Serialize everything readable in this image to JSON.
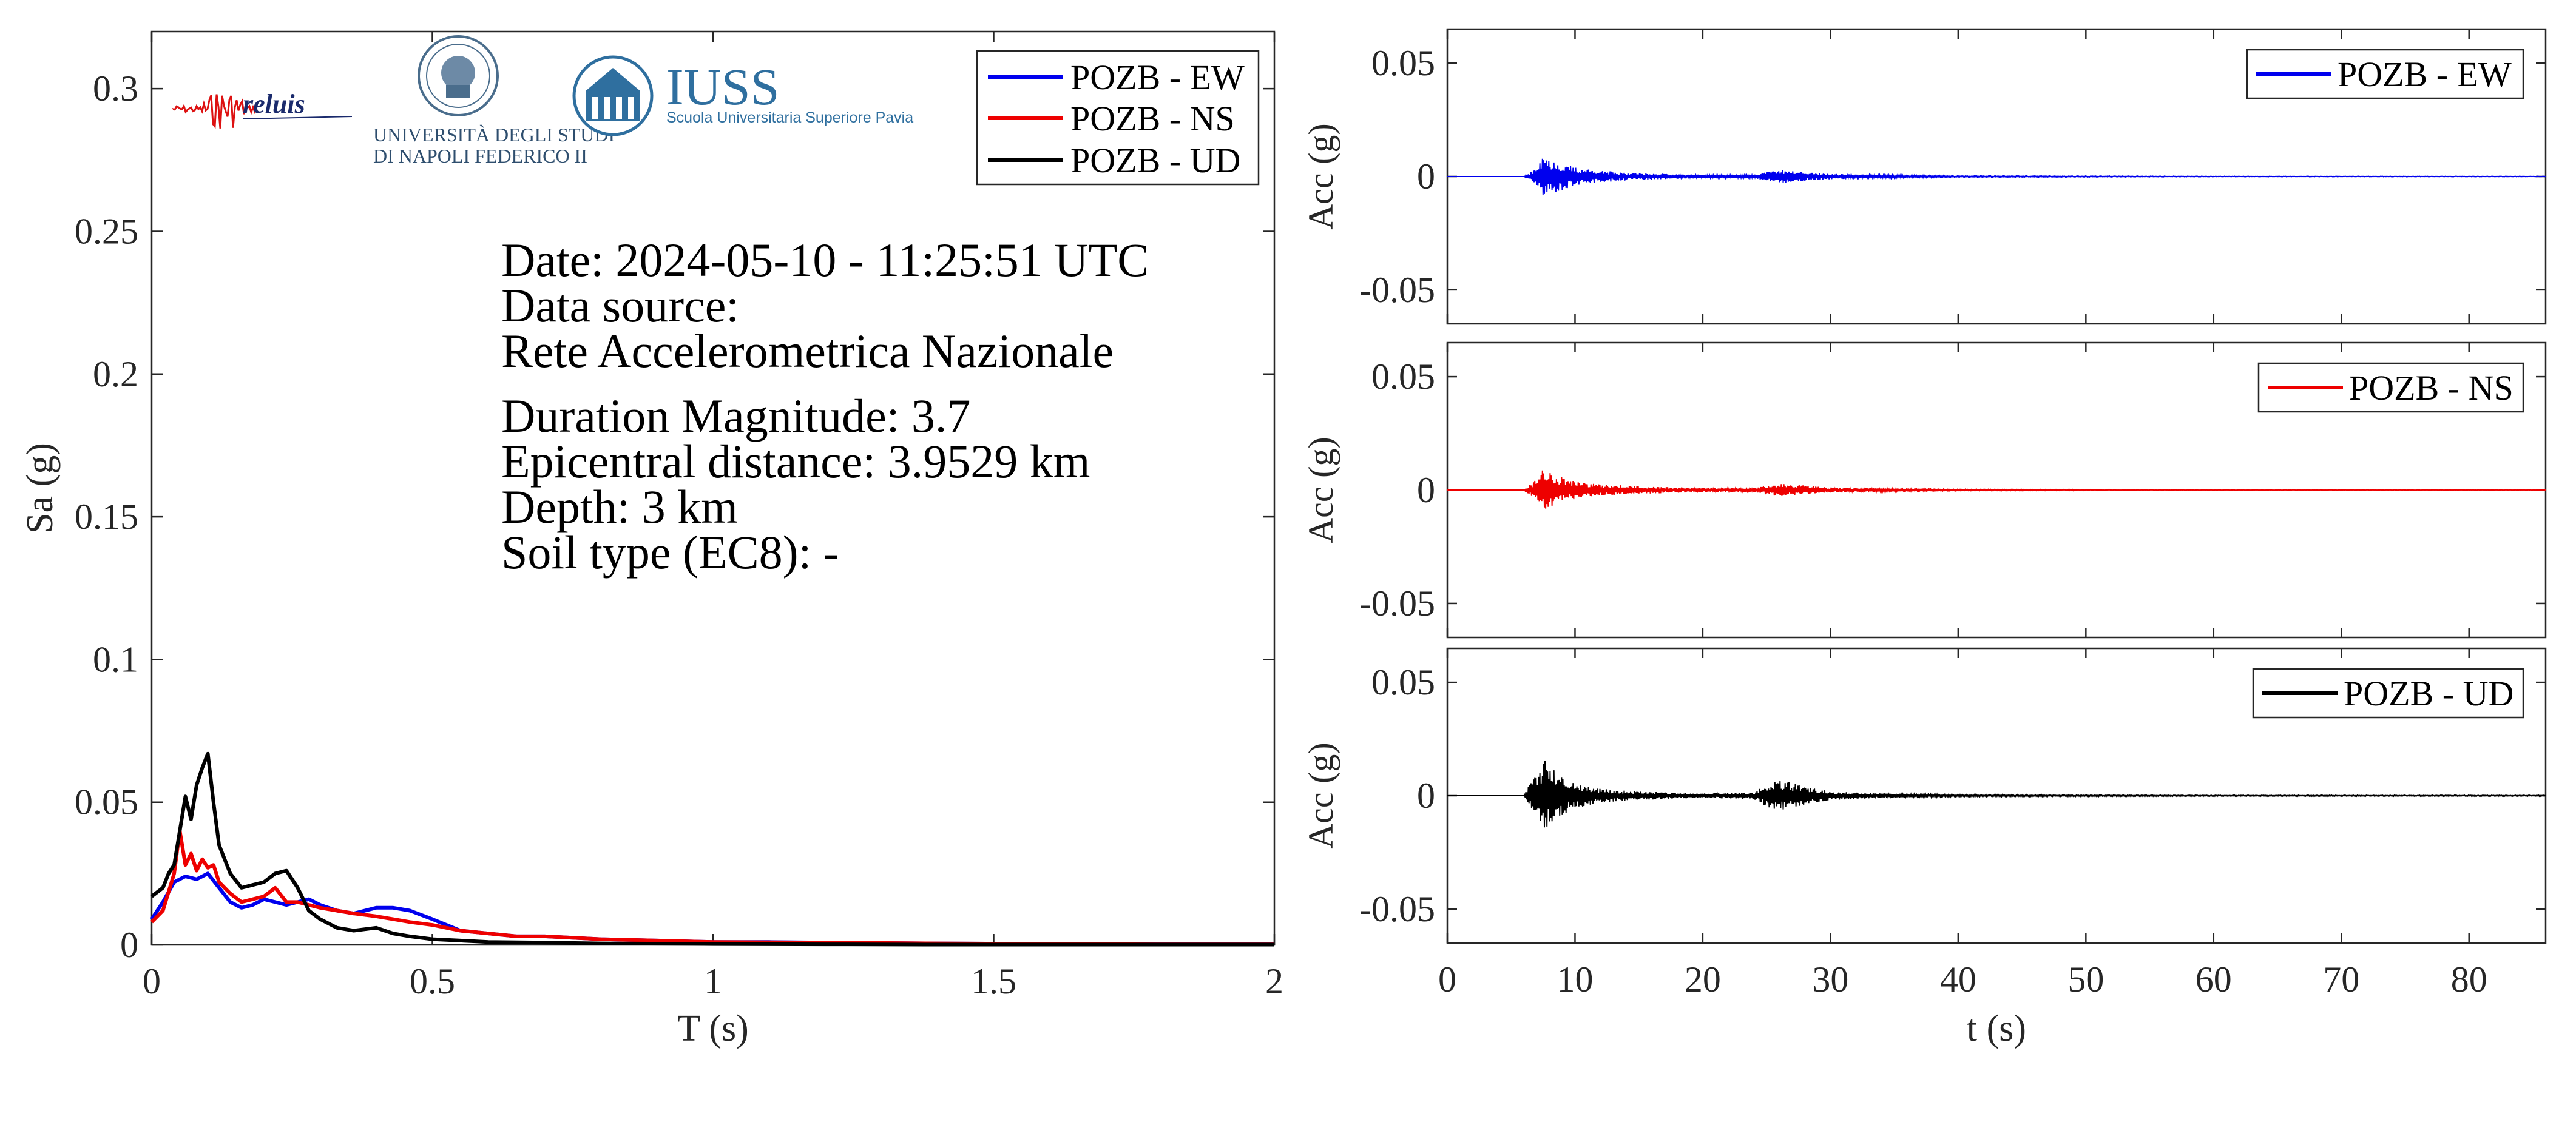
{
  "spectrum": {
    "xlabel": "T (s)",
    "ylabel": "Sa (g)",
    "xlim": [
      0,
      2
    ],
    "ylim": [
      0,
      0.32
    ],
    "xticks": [
      0,
      0.5,
      1,
      1.5,
      2
    ],
    "xtick_labels": [
      "0",
      "0.5",
      "1",
      "1.5",
      "2"
    ],
    "yticks": [
      0,
      0.05,
      0.1,
      0.15,
      0.2,
      0.25,
      0.3
    ],
    "ytick_labels": [
      "0",
      "0.05",
      "0.1",
      "0.15",
      "0.2",
      "0.25",
      "0.3"
    ],
    "legend": [
      "POZB - EW",
      "POZB - NS",
      "POZB - UD"
    ],
    "info": {
      "date": "Date: 2024-05-10 - 11:25:51 UTC",
      "source_label": "Data source:",
      "source_name": "Rete Accelerometrica Nazionale",
      "magnitude": "Duration Magnitude: 3.7",
      "distance": "Epicentral distance: 3.9529 km",
      "depth": "Depth: 3 km",
      "soil": "Soil type (EC8): -"
    }
  },
  "logos": {
    "reluis": "reluis",
    "unina_line1": "UNIVERSITÀ DEGLI STUDI",
    "unina_line2": "DI NAPOLI FEDERICO II",
    "iuss_title": "IUSS",
    "iuss_sub": "Scuola Universitaria Superiore Pavia"
  },
  "timeseries": {
    "xlabel": "t (s)",
    "ylabel": "Acc (g)",
    "xlim": [
      0,
      86
    ],
    "ylim": [
      -0.065,
      0.065
    ],
    "xticks": [
      0,
      10,
      20,
      30,
      40,
      50,
      60,
      70,
      80
    ],
    "xtick_labels": [
      "0",
      "10",
      "20",
      "30",
      "40",
      "50",
      "60",
      "70",
      "80"
    ],
    "yticks": [
      0.05,
      0,
      -0.05
    ],
    "ytick_labels": [
      "0.05",
      "0",
      "-0.05"
    ]
  },
  "colors": {
    "EW": "#0000ee",
    "NS": "#ee0000",
    "UD": "#000000"
  },
  "chart_data": [
    {
      "type": "line",
      "xlabel": "T (s)",
      "ylabel": "Sa (g)",
      "xlim": [
        0,
        2
      ],
      "ylim": [
        0,
        0.32
      ],
      "legend_position": "top-right",
      "series": [
        {
          "name": "POZB - EW",
          "x": [
            0,
            0.02,
            0.04,
            0.06,
            0.08,
            0.1,
            0.12,
            0.14,
            0.16,
            0.18,
            0.2,
            0.22,
            0.24,
            0.26,
            0.28,
            0.3,
            0.33,
            0.36,
            0.4,
            0.43,
            0.46,
            0.5,
            0.55,
            0.6,
            0.65,
            0.7,
            0.75,
            0.8,
            0.9,
            1.0,
            1.1,
            1.2,
            1.4,
            1.6,
            1.8,
            2.0
          ],
          "y": [
            0.009,
            0.015,
            0.022,
            0.024,
            0.023,
            0.025,
            0.02,
            0.015,
            0.013,
            0.014,
            0.016,
            0.015,
            0.014,
            0.015,
            0.016,
            0.014,
            0.012,
            0.011,
            0.013,
            0.013,
            0.012,
            0.009,
            0.005,
            0.004,
            0.003,
            0.003,
            0.0025,
            0.002,
            0.0015,
            0.001,
            0.001,
            0.0008,
            0.0005,
            0.0003,
            0.0002,
            0.0002
          ]
        },
        {
          "name": "POZB - NS",
          "x": [
            0,
            0.02,
            0.04,
            0.05,
            0.06,
            0.07,
            0.08,
            0.09,
            0.1,
            0.11,
            0.12,
            0.14,
            0.16,
            0.18,
            0.2,
            0.22,
            0.24,
            0.26,
            0.28,
            0.3,
            0.33,
            0.36,
            0.4,
            0.43,
            0.46,
            0.5,
            0.55,
            0.6,
            0.65,
            0.7,
            0.8,
            0.9,
            1.0,
            1.2,
            1.4,
            1.6,
            1.8,
            2.0
          ],
          "y": [
            0.008,
            0.012,
            0.025,
            0.04,
            0.028,
            0.032,
            0.026,
            0.03,
            0.027,
            0.028,
            0.022,
            0.018,
            0.015,
            0.016,
            0.017,
            0.02,
            0.015,
            0.015,
            0.014,
            0.013,
            0.012,
            0.011,
            0.01,
            0.009,
            0.008,
            0.007,
            0.005,
            0.004,
            0.003,
            0.003,
            0.002,
            0.0015,
            0.001,
            0.0008,
            0.0005,
            0.0003,
            0.0002,
            0.0002
          ]
        },
        {
          "name": "POZB - UD",
          "x": [
            0,
            0.02,
            0.03,
            0.04,
            0.05,
            0.06,
            0.07,
            0.08,
            0.09,
            0.1,
            0.11,
            0.12,
            0.14,
            0.16,
            0.18,
            0.2,
            0.22,
            0.24,
            0.26,
            0.28,
            0.3,
            0.33,
            0.36,
            0.4,
            0.43,
            0.46,
            0.5,
            0.55,
            0.6,
            0.7,
            0.8,
            1.0,
            1.2,
            1.4,
            1.6,
            1.8,
            2.0
          ],
          "y": [
            0.017,
            0.02,
            0.025,
            0.028,
            0.04,
            0.052,
            0.044,
            0.056,
            0.062,
            0.067,
            0.05,
            0.035,
            0.025,
            0.02,
            0.021,
            0.022,
            0.025,
            0.026,
            0.02,
            0.012,
            0.009,
            0.006,
            0.005,
            0.006,
            0.004,
            0.003,
            0.002,
            0.0015,
            0.001,
            0.0008,
            0.0005,
            0.0003,
            0.0002,
            0.0001,
            0.0001,
            0.0001,
            0.0001
          ]
        }
      ]
    },
    {
      "type": "line",
      "xlabel": "",
      "ylabel": "Acc (g)",
      "xlim": [
        0,
        86
      ],
      "ylim": [
        -0.065,
        0.065
      ],
      "legend_position": "top-right",
      "series": [
        {
          "name": "POZB - EW",
          "envelope_t": [
            0,
            6,
            7,
            7.5,
            8,
            9,
            10,
            12,
            15,
            18,
            20,
            24,
            25,
            26,
            27,
            28,
            30,
            33,
            36,
            40,
            50,
            60,
            70,
            86
          ],
          "envelope_amp": [
            0,
            0,
            0.004,
            0.009,
            0.008,
            0.006,
            0.004,
            0.0025,
            0.0015,
            0.001,
            0.0008,
            0.0008,
            0.002,
            0.003,
            0.0025,
            0.002,
            0.0012,
            0.0008,
            0.0005,
            0.0003,
            0.0002,
            0.0001,
            0.0001,
            0.0001
          ]
        }
      ]
    },
    {
      "type": "line",
      "xlabel": "",
      "ylabel": "Acc (g)",
      "xlim": [
        0,
        86
      ],
      "ylim": [
        -0.065,
        0.065
      ],
      "legend_position": "top-right",
      "series": [
        {
          "name": "POZB - NS",
          "envelope_t": [
            0,
            6,
            7,
            7.5,
            8,
            9,
            10,
            12,
            15,
            18,
            20,
            24,
            25,
            26,
            27,
            28,
            30,
            33,
            36,
            40,
            50,
            60,
            70,
            86
          ],
          "envelope_amp": [
            0,
            0,
            0.005,
            0.01,
            0.009,
            0.006,
            0.004,
            0.0025,
            0.0018,
            0.0012,
            0.001,
            0.001,
            0.002,
            0.003,
            0.0025,
            0.002,
            0.0012,
            0.0008,
            0.0005,
            0.0003,
            0.0002,
            0.0001,
            0.0001,
            0.0001
          ]
        }
      ]
    },
    {
      "type": "line",
      "xlabel": "t (s)",
      "ylabel": "Acc (g)",
      "xlim": [
        0,
        86
      ],
      "ylim": [
        -0.065,
        0.065
      ],
      "legend_position": "top-right",
      "series": [
        {
          "name": "POZB - UD",
          "envelope_t": [
            0,
            6,
            6.5,
            7,
            7.5,
            8,
            8.5,
            9,
            10,
            12,
            15,
            18,
            20,
            24,
            25,
            26,
            27,
            28,
            30,
            33,
            36,
            40,
            50,
            60,
            70,
            86
          ],
          "envelope_amp": [
            0,
            0,
            0.006,
            0.011,
            0.016,
            0.014,
            0.012,
            0.009,
            0.006,
            0.003,
            0.002,
            0.0012,
            0.001,
            0.0015,
            0.005,
            0.007,
            0.006,
            0.004,
            0.002,
            0.0012,
            0.0007,
            0.0004,
            0.0003,
            0.0002,
            0.0002,
            0.0002
          ]
        }
      ]
    }
  ]
}
